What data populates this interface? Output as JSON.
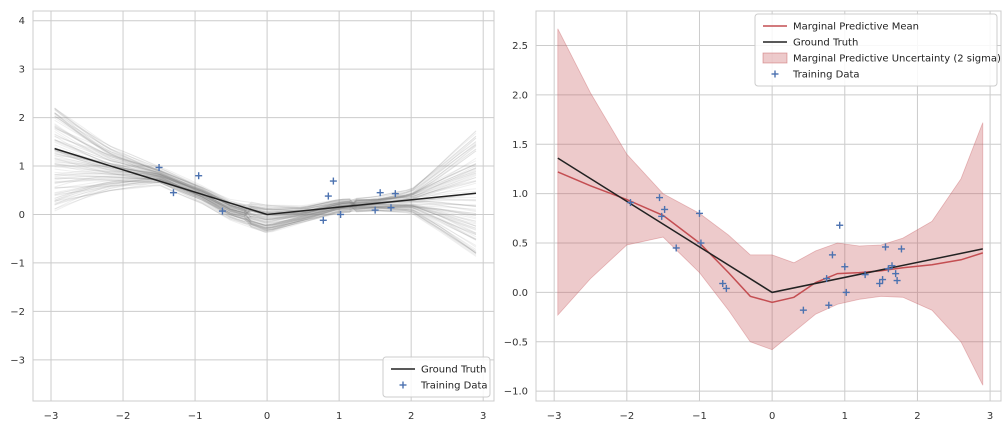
{
  "chart_data": [
    {
      "type": "line",
      "xlim": [
        -3.25,
        3.15
      ],
      "ylim": [
        -3.85,
        4.2
      ],
      "xticks": [
        "−3",
        "−2",
        "−1",
        "0",
        "1",
        "2",
        "3"
      ],
      "xtick_values": [
        -3,
        -2,
        -1,
        0,
        1,
        2,
        3
      ],
      "yticks": [
        "−3",
        "−2",
        "−1",
        "0",
        "1",
        "2",
        "3",
        "4"
      ],
      "ytick_values": [
        -3,
        -2,
        -1,
        0,
        1,
        2,
        3,
        4
      ],
      "grid": true,
      "legend": {
        "placement": "lower-right",
        "entries": [
          "Ground Truth",
          "Training Data"
        ]
      },
      "series": [
        {
          "name": "Ground Truth",
          "color": "#222222",
          "x": [
            -2.95,
            0,
            2.9
          ],
          "y": [
            1.36,
            0.0,
            0.44
          ]
        },
        {
          "name": "Training Data",
          "color": "#4c72b0",
          "x": [
            -1.5,
            -1.3,
            -0.95,
            -0.62,
            0.78,
            0.85,
            0.92,
            1.02,
            1.5,
            1.57,
            1.72,
            1.78
          ],
          "y": [
            0.97,
            0.45,
            0.8,
            0.07,
            -0.12,
            0.38,
            0.69,
            0.0,
            0.09,
            0.45,
            0.14,
            0.43
          ]
        }
      ],
      "posterior_samples": {
        "count": 100,
        "color": "#808080",
        "x_knots": [
          -2.95,
          -2.2,
          -1.5,
          -0.9,
          -0.5,
          0,
          0.5,
          1.0,
          1.5,
          2.0,
          2.4,
          2.9
        ],
        "mean": [
          1.2,
          0.96,
          0.8,
          0.42,
          0.1,
          -0.1,
          0.0,
          0.18,
          0.22,
          0.28,
          0.34,
          0.4
        ],
        "spread": [
          1.15,
          0.55,
          0.18,
          0.18,
          0.22,
          0.3,
          0.15,
          0.12,
          0.12,
          0.22,
          0.7,
          1.35
        ]
      }
    },
    {
      "type": "line",
      "xlim": [
        -3.25,
        3.15
      ],
      "ylim": [
        -1.1,
        2.85
      ],
      "xticks": [
        "−3",
        "−2",
        "−1",
        "0",
        "1",
        "2",
        "3"
      ],
      "xtick_values": [
        -3,
        -2,
        -1,
        0,
        1,
        2,
        3
      ],
      "yticks": [
        "−1.0",
        "−0.5",
        "0.0",
        "0.5",
        "1.0",
        "1.5",
        "2.0",
        "2.5"
      ],
      "ytick_values": [
        -1.0,
        -0.5,
        0.0,
        0.5,
        1.0,
        1.5,
        2.0,
        2.5
      ],
      "grid": true,
      "legend": {
        "placement": "top-right",
        "entries": [
          "Marginal Predictive Mean",
          "Ground Truth",
          "Marginal Predictive Uncertainty (2 sigma)",
          "Training Data"
        ]
      },
      "series": [
        {
          "name": "Marginal Predictive Mean",
          "color": "#c44e52",
          "x": [
            -2.95,
            -2.5,
            -2.0,
            -1.5,
            -1.0,
            -0.6,
            -0.3,
            0,
            0.3,
            0.6,
            0.9,
            1.2,
            1.5,
            1.8,
            2.2,
            2.6,
            2.9
          ],
          "y": [
            1.22,
            1.08,
            0.94,
            0.78,
            0.5,
            0.2,
            -0.04,
            -0.1,
            -0.05,
            0.1,
            0.19,
            0.2,
            0.22,
            0.25,
            0.28,
            0.33,
            0.4
          ]
        },
        {
          "name": "Ground Truth",
          "color": "#222222",
          "x": [
            -2.95,
            0,
            2.9
          ],
          "y": [
            1.36,
            0.0,
            0.44
          ]
        },
        {
          "name": "Marginal Predictive Uncertainty (2 sigma)",
          "color": "#c44e52",
          "opacity": 0.3,
          "x": [
            -2.95,
            -2.5,
            -2.0,
            -1.5,
            -1.0,
            -0.6,
            -0.3,
            0,
            0.3,
            0.6,
            0.9,
            1.2,
            1.5,
            1.8,
            2.2,
            2.6,
            2.9
          ],
          "upper": [
            2.67,
            2.02,
            1.4,
            1.0,
            0.8,
            0.58,
            0.38,
            0.38,
            0.3,
            0.42,
            0.5,
            0.47,
            0.48,
            0.55,
            0.72,
            1.15,
            1.72
          ],
          "lower": [
            -0.23,
            0.14,
            0.48,
            0.56,
            0.2,
            -0.18,
            -0.5,
            -0.58,
            -0.4,
            -0.22,
            -0.12,
            -0.07,
            -0.04,
            -0.05,
            -0.18,
            -0.5,
            -0.94
          ]
        },
        {
          "name": "Training Data",
          "color": "#4c72b0",
          "x": [
            -1.95,
            -1.55,
            -1.52,
            -1.48,
            -1.32,
            -1.0,
            -0.98,
            -0.68,
            -0.63,
            0.43,
            0.75,
            0.78,
            0.83,
            0.93,
            1.0,
            1.02,
            1.28,
            1.48,
            1.52,
            1.56,
            1.6,
            1.65,
            1.7,
            1.72,
            1.78
          ],
          "y": [
            0.91,
            0.96,
            0.77,
            0.84,
            0.45,
            0.8,
            0.5,
            0.09,
            0.04,
            -0.18,
            0.14,
            -0.13,
            0.38,
            0.68,
            0.26,
            0.0,
            0.18,
            0.09,
            0.13,
            0.46,
            0.24,
            0.27,
            0.19,
            0.12,
            0.44
          ]
        }
      ]
    }
  ]
}
